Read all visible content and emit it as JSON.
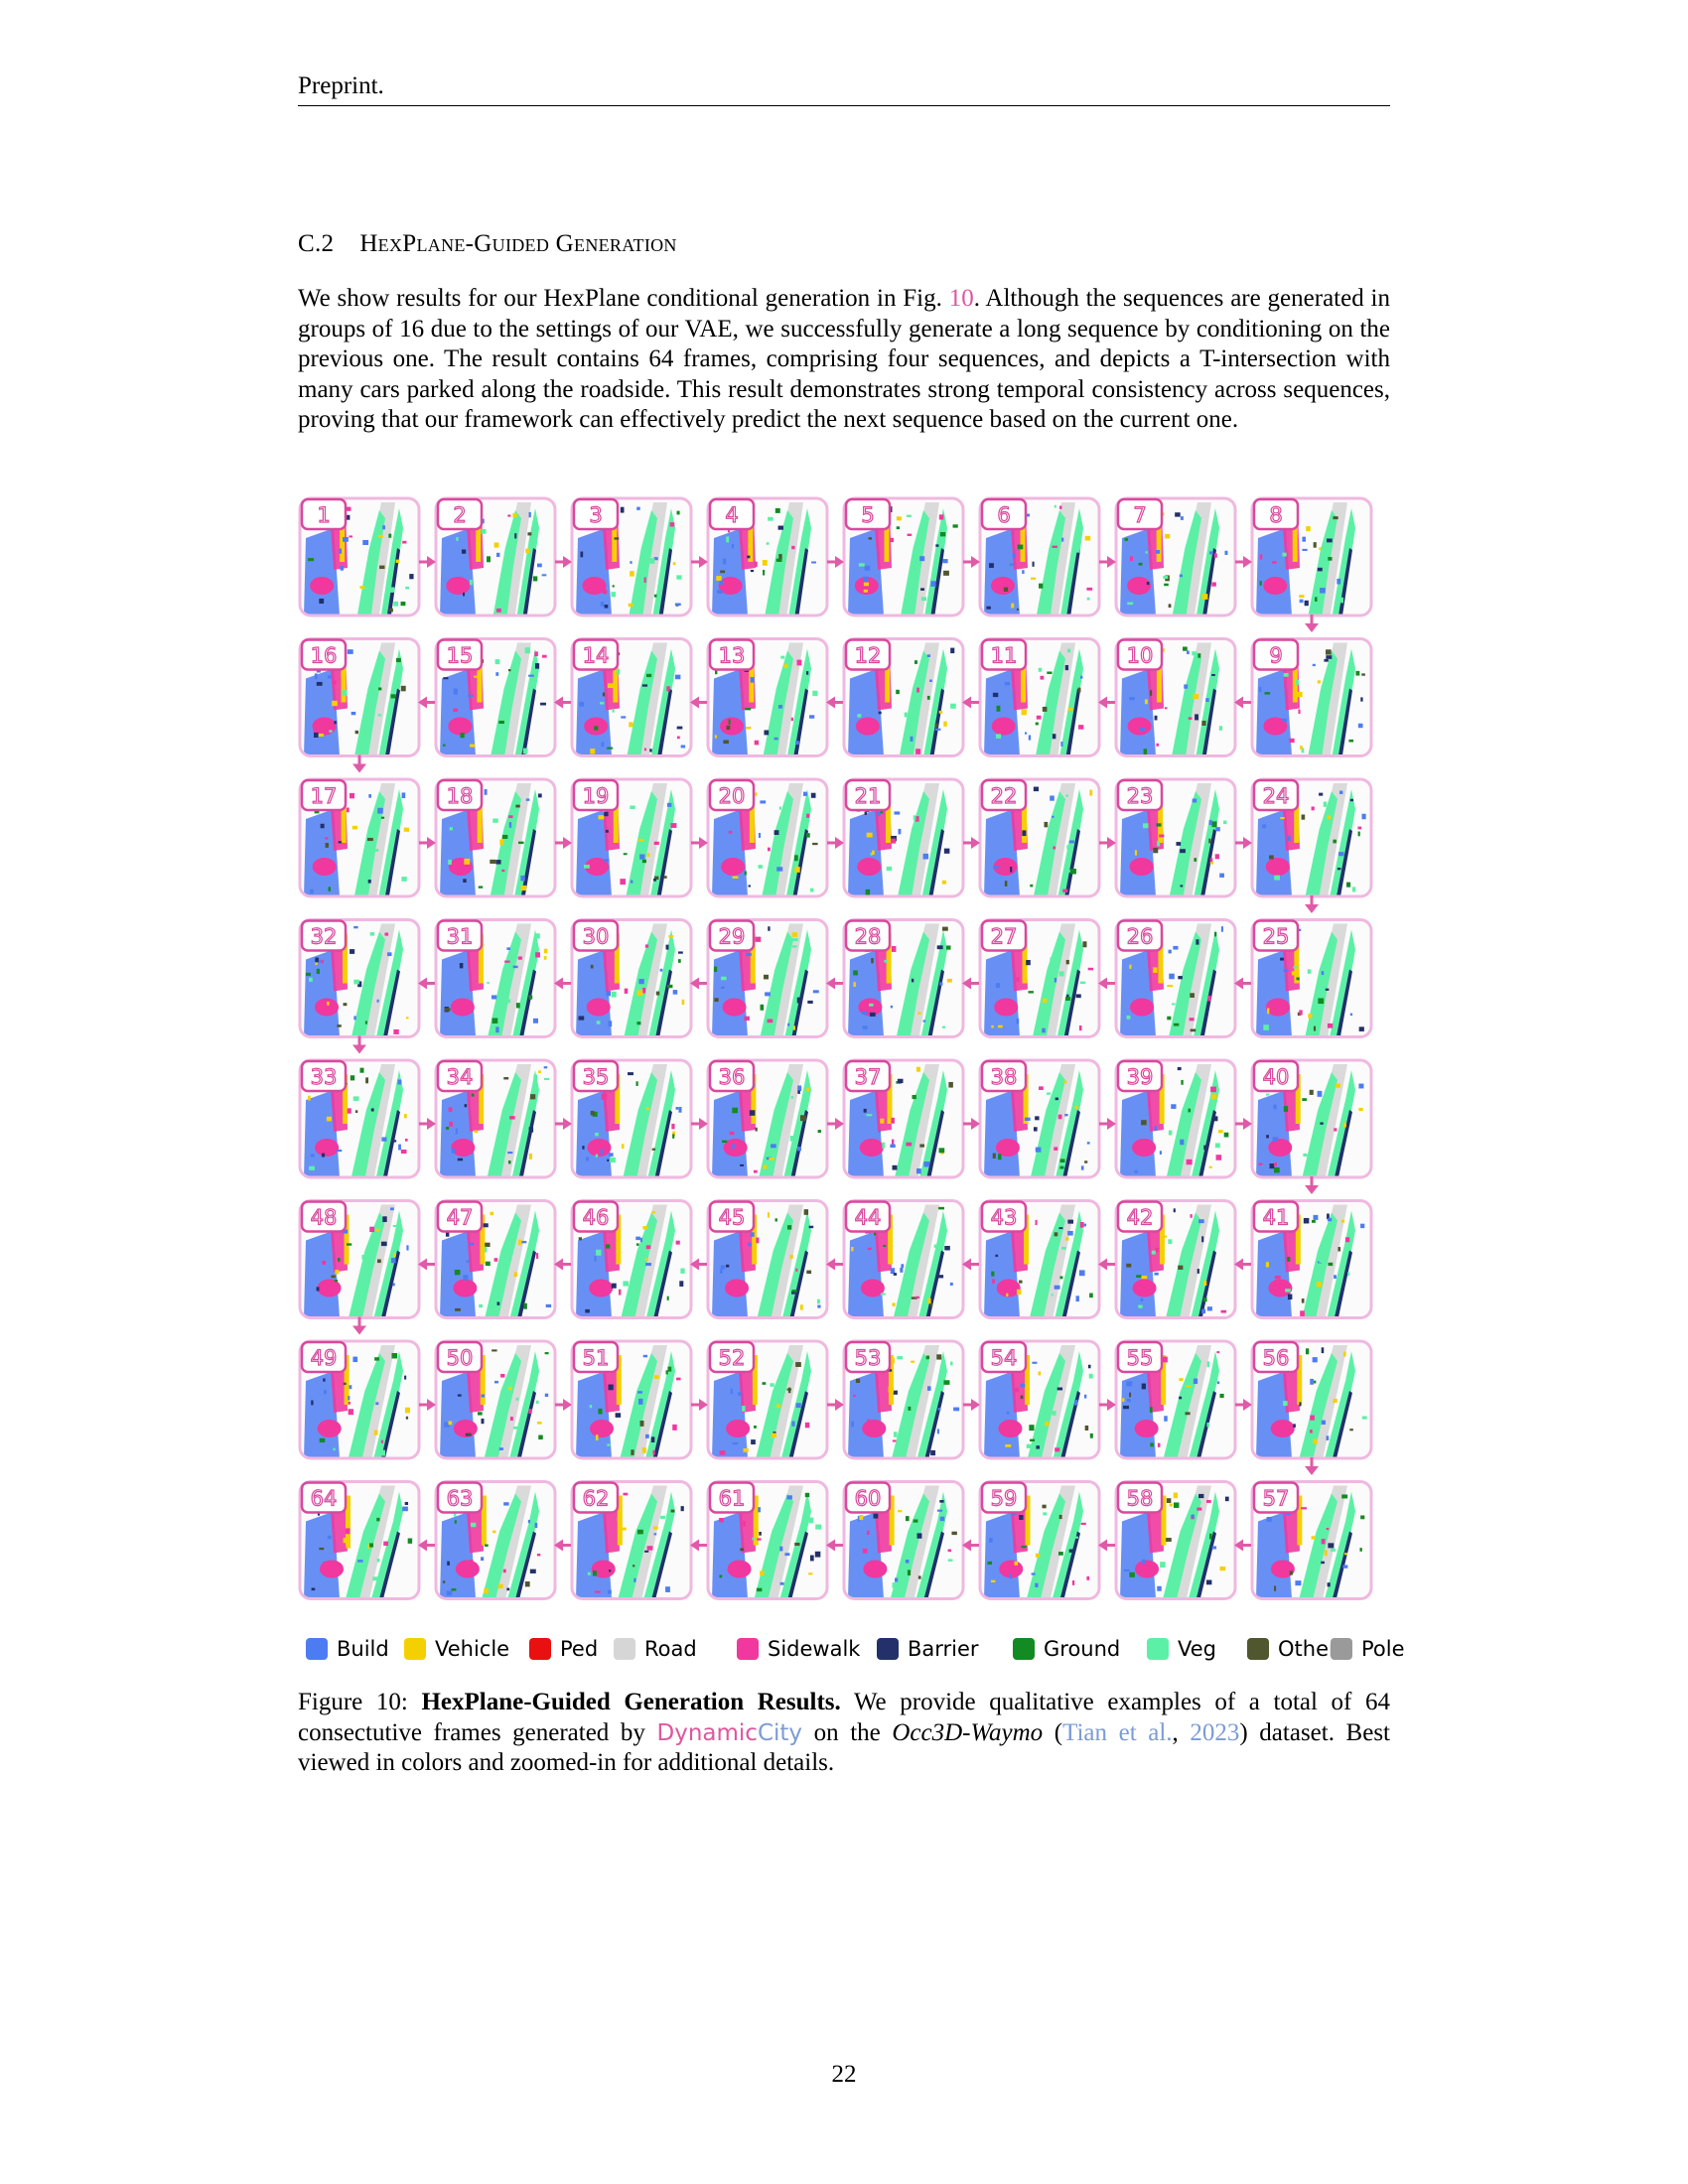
{
  "header": {
    "running_title": "Preprint."
  },
  "section": {
    "number": "C.2",
    "title": "HexPlane-Guided Generation"
  },
  "paragraph": {
    "part1": "We show results for our HexPlane conditional generation in Fig. ",
    "fig_ref": "10",
    "part2": ". Although the sequences are generated in groups of 16 due to the settings of our VAE, we successfully generate a long sequence by conditioning on the previous one. The result contains 64 frames, comprising four sequences, and depicts a T-intersection with many cars parked along the roadside. This result demonstrates strong temporal consistency across sequences, proving that our framework can effectively predict the next sequence based on the current one."
  },
  "figure": {
    "frame_rows": [
      [
        1,
        2,
        3,
        4,
        5,
        6,
        7,
        8
      ],
      [
        16,
        15,
        14,
        13,
        12,
        11,
        10,
        9
      ],
      [
        17,
        18,
        19,
        20,
        21,
        22,
        23,
        24
      ],
      [
        32,
        31,
        30,
        29,
        28,
        27,
        26,
        25
      ],
      [
        33,
        34,
        35,
        36,
        37,
        38,
        39,
        40
      ],
      [
        48,
        47,
        46,
        45,
        44,
        43,
        42,
        41
      ],
      [
        49,
        50,
        51,
        52,
        53,
        54,
        55,
        56
      ],
      [
        64,
        63,
        62,
        61,
        60,
        59,
        58,
        57
      ]
    ],
    "frame_border_color": "#f0b8e0",
    "label_color": "#d9489e",
    "arrow_color": "#e05aa8"
  },
  "legend": [
    {
      "label": "Build",
      "color": "#4d7cf2"
    },
    {
      "label": "Vehicle",
      "color": "#f5d000"
    },
    {
      "label": "Ped",
      "color": "#e81010"
    },
    {
      "label": "Road",
      "color": "#d6d6d6"
    },
    {
      "label": "Sidewalk",
      "color": "#f0389e"
    },
    {
      "label": "Barrier",
      "color": "#23306a"
    },
    {
      "label": "Ground",
      "color": "#148a22"
    },
    {
      "label": "Veg",
      "color": "#5cf0a6"
    },
    {
      "label": "Other",
      "color": "#50562e"
    },
    {
      "label": "Pole",
      "color": "#9a9a9a"
    }
  ],
  "caption": {
    "label": "Figure 10: ",
    "bold": "HexPlane-Guided Generation Results.",
    "text1": " We provide qualitative examples of a total of 64 consectutive frames generated by ",
    "name_part1": "Dynamic",
    "name_part2": "City",
    "text2": " on the ",
    "dataset": "Occ3D-Waymo",
    "text3": " (",
    "cite_author": "Tian et al.",
    "cite_sep": ", ",
    "cite_year": "2023",
    "text4": ") dataset. Best viewed in colors and zoomed-in for additional details."
  },
  "page_number": "22"
}
